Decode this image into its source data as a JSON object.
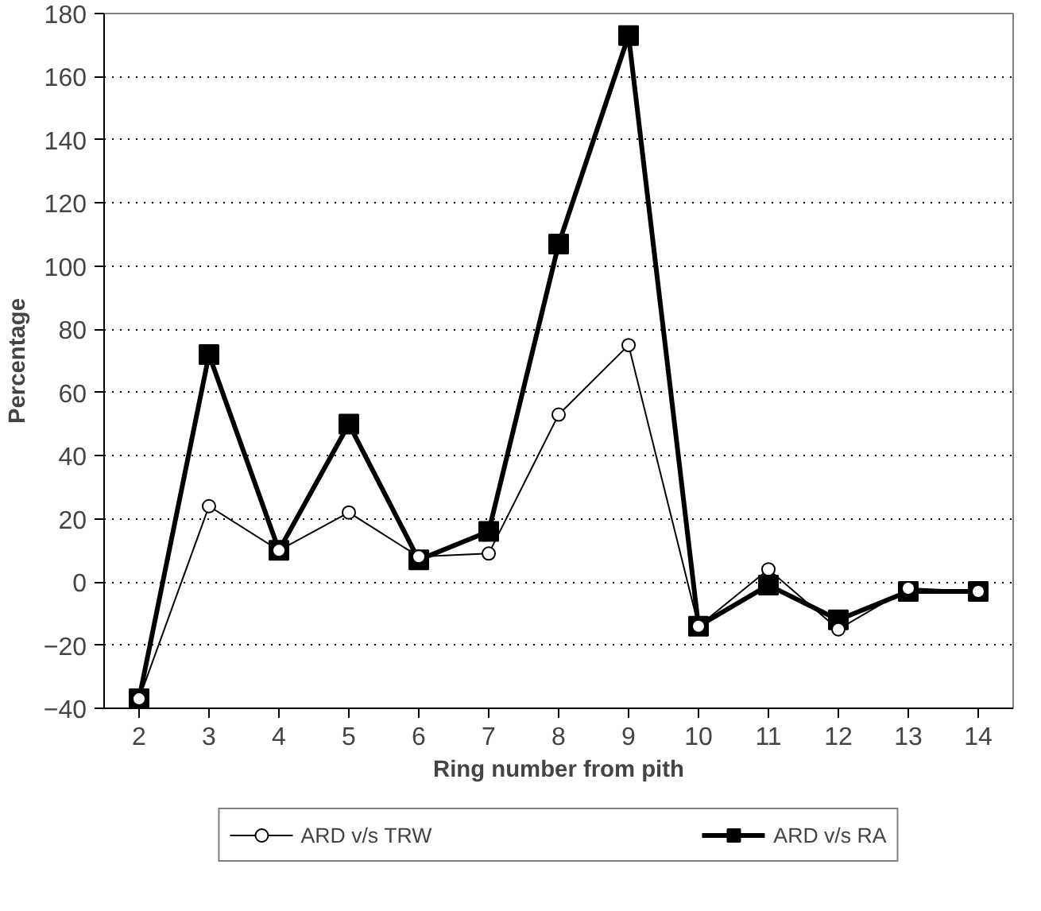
{
  "chart_data": {
    "type": "line",
    "xlabel": "Ring number from pith",
    "ylabel": "Percentage",
    "categories": [
      "2",
      "3",
      "4",
      "5",
      "6",
      "7",
      "8",
      "9",
      "10",
      "11",
      "12",
      "13",
      "14"
    ],
    "series": [
      {
        "name": "ARD v/s TRW",
        "color": "#000000",
        "marker": "circle",
        "values": [
          -37,
          24,
          10,
          22,
          8,
          9,
          53,
          75,
          -14,
          4,
          -15,
          -2,
          -3
        ]
      },
      {
        "name": "ARD v/s RA",
        "color": "#000000",
        "marker": "square",
        "values": [
          -37,
          72,
          10,
          50,
          7,
          16,
          107,
          173,
          -14,
          -1,
          -12,
          -3,
          -3
        ]
      }
    ],
    "ylim": [
      -40,
      180
    ],
    "yticks": [
      -40,
      -20,
      0,
      20,
      40,
      60,
      80,
      100,
      120,
      140,
      160,
      180
    ],
    "grid": "y",
    "legend": "bottom",
    "line_style": "solid"
  }
}
